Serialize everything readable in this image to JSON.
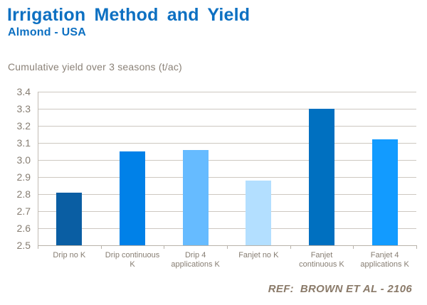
{
  "header": {
    "title": "Irrigation Method and Yield",
    "subtitle": "Almond - USA"
  },
  "chart_data": {
    "type": "bar",
    "title": "Cumulative yield over 3 seasons (t/ac)",
    "categories": [
      "Drip no K",
      "Drip continuous K",
      "Drip 4 applications K",
      "Fanjet no K",
      "Fanjet continuous K",
      "Fanjet 4 applications K"
    ],
    "category_display_lines": [
      [
        "Drip no K"
      ],
      [
        "Drip continuous",
        "K"
      ],
      [
        "Drip 4",
        "applications K"
      ],
      [
        "Fanjet no K"
      ],
      [
        "Fanjet",
        "continuous K"
      ],
      [
        "Fanjet 4",
        "applications K"
      ]
    ],
    "values": [
      2.81,
      3.05,
      3.06,
      2.88,
      3.3,
      3.12
    ],
    "bar_colors": [
      "#0a5ea3",
      "#0081e8",
      "#66bbff",
      "#b3dfff",
      "#0070c0",
      "#129bff"
    ],
    "xlabel": "",
    "ylabel": "",
    "ylim": [
      2.5,
      3.4
    ],
    "ytick_step": 0.1,
    "ytick_labels": [
      "2.5",
      "2.6",
      "2.7",
      "2.8",
      "2.9",
      "3.0",
      "3.1",
      "3.2",
      "3.3",
      "3.4"
    ],
    "grid": true,
    "legend": false
  },
  "footer": {
    "ref_label": "REF:  BROWN ET AL - 2106"
  },
  "colors": {
    "title_blue": "#0d70c2",
    "text_gray": "#8b8278",
    "gridline_gray": "#cdc8c1",
    "ref_brown": "#8a7a69"
  }
}
